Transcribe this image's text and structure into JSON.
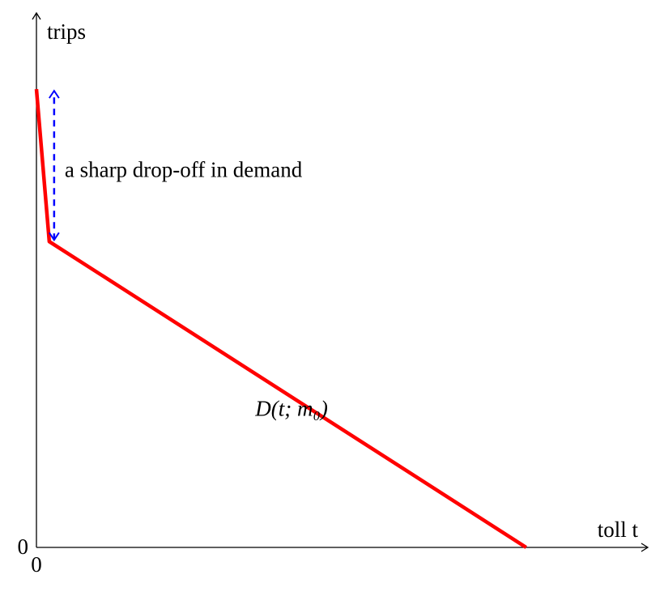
{
  "chart_data": {
    "type": "line",
    "x_label": "toll t",
    "y_label": "trips",
    "annotation": "a sharp drop-off in demand",
    "x": [
      0,
      2.1,
      80.1
    ],
    "series": [
      {
        "name": "D(t; m₀)",
        "color": "#ff0000",
        "values": [
          86,
          57.4,
          0
        ]
      }
    ],
    "annotation_color": "#0000ff",
    "xlim": [
      0,
      100
    ],
    "ylim": [
      0,
      100
    ],
    "xticks": [
      0
    ],
    "yticks": [
      0
    ],
    "grid": false
  }
}
